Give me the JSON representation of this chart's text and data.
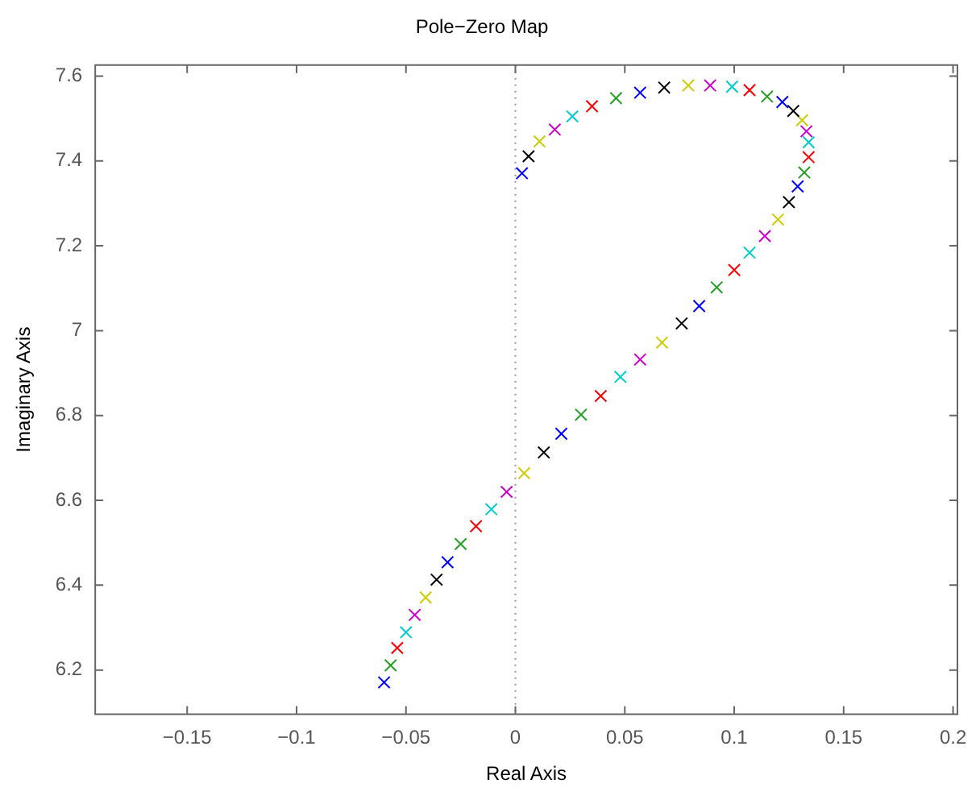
{
  "chart_data": {
    "type": "scatter",
    "title": "Pole−Zero Map",
    "xlabel": "Real Axis",
    "ylabel": "Imaginary Axis",
    "marker": "cross",
    "grid": false,
    "legend": false,
    "xlim": [
      -0.192,
      0.202
    ],
    "xticks": [
      -0.15,
      -0.1,
      -0.05,
      0,
      0.05,
      0.1,
      0.15,
      0.2
    ],
    "ylim": [
      6.096,
      7.626
    ],
    "yticks": [
      6.2,
      6.4,
      6.6,
      6.8,
      7,
      7.2,
      7.4,
      7.6
    ],
    "ref_lines": [
      {
        "axis": "x",
        "value": 0,
        "color": "#999999",
        "line_style": "dotted"
      }
    ],
    "series": [
      {
        "x": [
          -0.06,
          -0.057,
          -0.054,
          -0.05,
          -0.046,
          -0.041,
          -0.036,
          -0.031,
          -0.025,
          -0.018,
          -0.011,
          -0.004,
          0.004,
          0.013,
          0.021,
          0.03,
          0.039,
          0.048,
          0.057,
          0.067,
          0.076,
          0.084,
          0.092,
          0.1,
          0.107,
          0.114,
          0.12,
          0.125,
          0.129,
          0.132,
          0.134,
          0.134,
          0.133,
          0.131,
          0.127,
          0.122,
          0.115,
          0.107,
          0.099,
          0.089,
          0.079,
          0.068,
          0.057,
          0.046,
          0.035,
          0.026,
          0.018,
          0.011,
          0.006,
          0.003
        ],
        "values": [
          6.171,
          6.211,
          6.252,
          6.289,
          6.33,
          6.371,
          6.413,
          6.454,
          6.497,
          6.539,
          6.579,
          6.62,
          6.664,
          6.713,
          6.757,
          6.802,
          6.846,
          6.891,
          6.932,
          6.972,
          7.017,
          7.058,
          7.102,
          7.143,
          7.184,
          7.223,
          7.262,
          7.303,
          7.34,
          7.373,
          7.409,
          7.444,
          7.47,
          7.496,
          7.518,
          7.539,
          7.552,
          7.567,
          7.575,
          7.578,
          7.578,
          7.573,
          7.561,
          7.548,
          7.529,
          7.505,
          7.474,
          7.446,
          7.411,
          7.371
        ],
        "colors": [
          "#0000ff",
          "#22a022",
          "#ff0000",
          "#00cccc",
          "#cc00cc",
          "#cccc00",
          "#000000",
          "#0000ff",
          "#22a022",
          "#ff0000",
          "#00cccc",
          "#cc00cc",
          "#cccc00",
          "#000000",
          "#0000ff",
          "#22a022",
          "#ff0000",
          "#00cccc",
          "#cc00cc",
          "#cccc00",
          "#000000",
          "#0000ff",
          "#22a022",
          "#ff0000",
          "#00cccc",
          "#cc00cc",
          "#cccc00",
          "#000000",
          "#0000ff",
          "#22a022",
          "#ff0000",
          "#00cccc",
          "#cc00cc",
          "#cccc00",
          "#000000",
          "#0000ff",
          "#22a022",
          "#ff0000",
          "#00cccc",
          "#cc00cc",
          "#cccc00",
          "#000000",
          "#0000ff",
          "#22a022",
          "#ff0000",
          "#00cccc",
          "#cc00cc",
          "#cccc00",
          "#000000",
          "#0000ff"
        ]
      }
    ]
  }
}
